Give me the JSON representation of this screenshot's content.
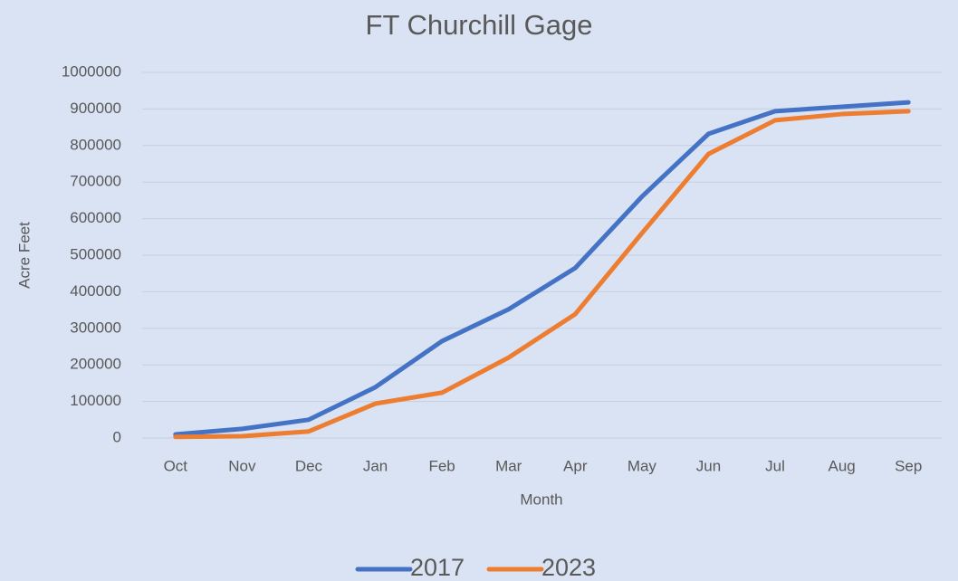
{
  "chart_data": {
    "type": "line",
    "title": "FT Churchill Gage",
    "x_label": "Month",
    "y_label": "Acre Feet",
    "categories": [
      "Oct",
      "Nov",
      "Dec",
      "Jan",
      "Feb",
      "Mar",
      "Apr",
      "May",
      "Jun",
      "Jul",
      "Aug",
      "Sep"
    ],
    "series": [
      {
        "name": "2017",
        "color": "#4472c4",
        "values": [
          10000,
          25000,
          50000,
          139000,
          265000,
          352000,
          465000,
          660000,
          832000,
          894000,
          906000,
          918000
        ]
      },
      {
        "name": "2023",
        "color": "#ed7d31",
        "values": [
          3000,
          5000,
          18000,
          94000,
          124000,
          220000,
          339000,
          560000,
          777000,
          869000,
          886000,
          894000
        ]
      }
    ],
    "ylim": [
      0,
      1000000
    ],
    "yticks": [
      0,
      100000,
      200000,
      300000,
      400000,
      500000,
      600000,
      700000,
      800000,
      900000,
      1000000
    ],
    "grid": true,
    "legend": "bottom"
  }
}
